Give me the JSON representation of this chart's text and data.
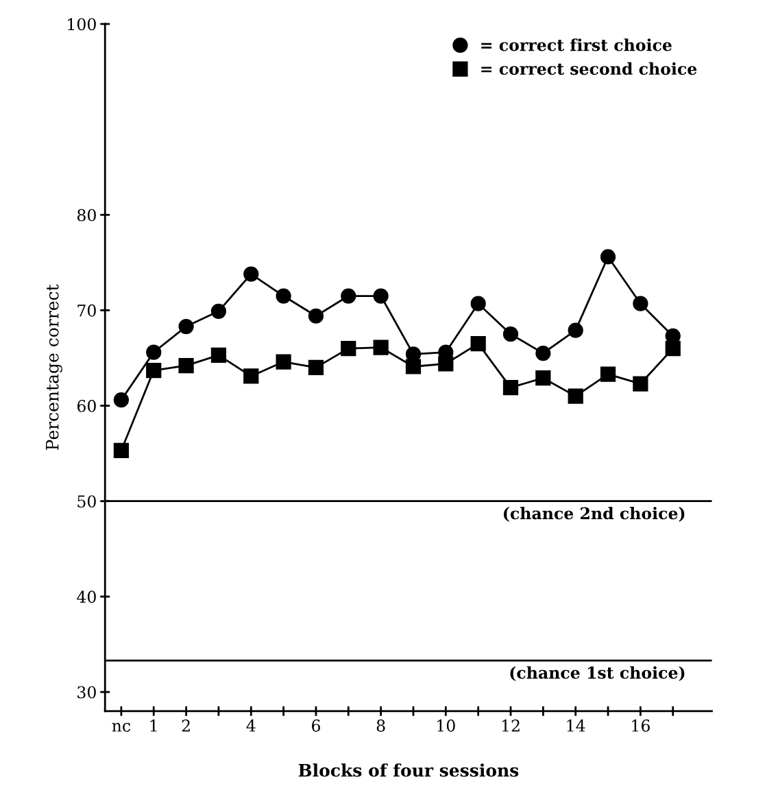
{
  "chart_data": {
    "type": "line",
    "xlabel": "Blocks of four sessions",
    "ylabel": "Percentage correct",
    "categories": [
      "nc",
      "1",
      "2",
      null,
      "4",
      null,
      "6",
      null,
      "8",
      null,
      "10",
      null,
      "12",
      null,
      "14",
      null,
      "16",
      null
    ],
    "series": [
      {
        "name": "= correct first choice",
        "color": "#000000",
        "marker": "circle",
        "values": [
          60.6,
          65.6,
          68.3,
          69.9,
          73.8,
          71.5,
          69.4,
          71.5,
          71.5,
          65.4,
          65.6,
          70.7,
          67.5,
          65.5,
          67.9,
          75.6,
          70.7,
          67.3
        ]
      },
      {
        "name": "= correct second choice",
        "color": "#000000",
        "marker": "square",
        "values": [
          55.3,
          63.7,
          64.2,
          65.3,
          63.1,
          64.6,
          64.0,
          66.0,
          66.1,
          64.1,
          64.4,
          66.5,
          61.9,
          62.9,
          61.0,
          63.3,
          62.3,
          66.0
        ]
      }
    ],
    "ylim": [
      28,
      100
    ],
    "yticks": [
      30,
      40,
      50,
      60,
      70,
      80,
      100
    ],
    "ref_lines": [
      {
        "axis": "y",
        "value": 50,
        "label": "(chance 2nd choice)",
        "color": "#000000"
      },
      {
        "axis": "y",
        "value": 33.3,
        "label": "(chance 1st choice)",
        "color": "#000000"
      }
    ],
    "grid": false,
    "legend": "top right",
    "line_style": "solid"
  }
}
